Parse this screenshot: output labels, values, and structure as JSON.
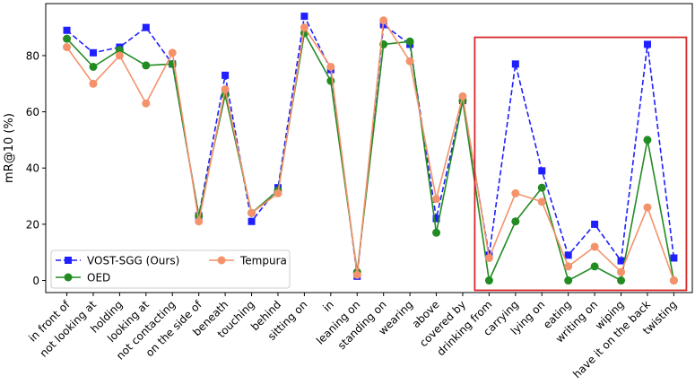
{
  "chart_data": {
    "type": "line",
    "ylabel": "mR@10 (%)",
    "xlabel": "",
    "ylim": [
      -4.3,
      98.5
    ],
    "yticks": [
      0,
      20,
      40,
      60,
      80
    ],
    "grid": false,
    "legend_position": "bottom-left",
    "categories": [
      "in front of",
      "not looking at",
      "holding",
      "looking at",
      "not contacting",
      "on the side of",
      "beneath",
      "touching",
      "behind",
      "sitting on",
      "in",
      "leaning on",
      "standing on",
      "wearing",
      "above",
      "covered by",
      "drinking from",
      "carrying",
      "lying on",
      "eating",
      "writing on",
      "wiping",
      "have it on the back",
      "twisting"
    ],
    "series": [
      {
        "name": "VOST-SGG (Ours)",
        "color": "#1f1fff",
        "style": "dashed",
        "marker": "square",
        "values": [
          89,
          81,
          83,
          90,
          77,
          23,
          73,
          21,
          33,
          94,
          75,
          1.5,
          91,
          84,
          22,
          64,
          9,
          77,
          39,
          9,
          20,
          7,
          84,
          8
        ]
      },
      {
        "name": "OED",
        "color": "#228b22",
        "style": "solid",
        "marker": "circle",
        "values": [
          86,
          76,
          82,
          76.5,
          77,
          23,
          66,
          24,
          32,
          88,
          71,
          3,
          84,
          85,
          17,
          64,
          0,
          21,
          33,
          0,
          5,
          0,
          50,
          0
        ]
      },
      {
        "name": "Tempura",
        "color": "#f4926b",
        "style": "solid",
        "marker": "circle",
        "values": [
          83,
          70,
          80,
          63,
          81,
          21,
          68,
          24,
          31,
          90,
          76,
          2,
          92.5,
          78,
          29,
          65.5,
          8,
          31,
          28,
          5,
          12,
          3,
          26,
          0
        ]
      }
    ],
    "highlight_box": {
      "x_from_category": "drinking from",
      "x_to_category": "twisting",
      "color": "#d62728"
    }
  }
}
